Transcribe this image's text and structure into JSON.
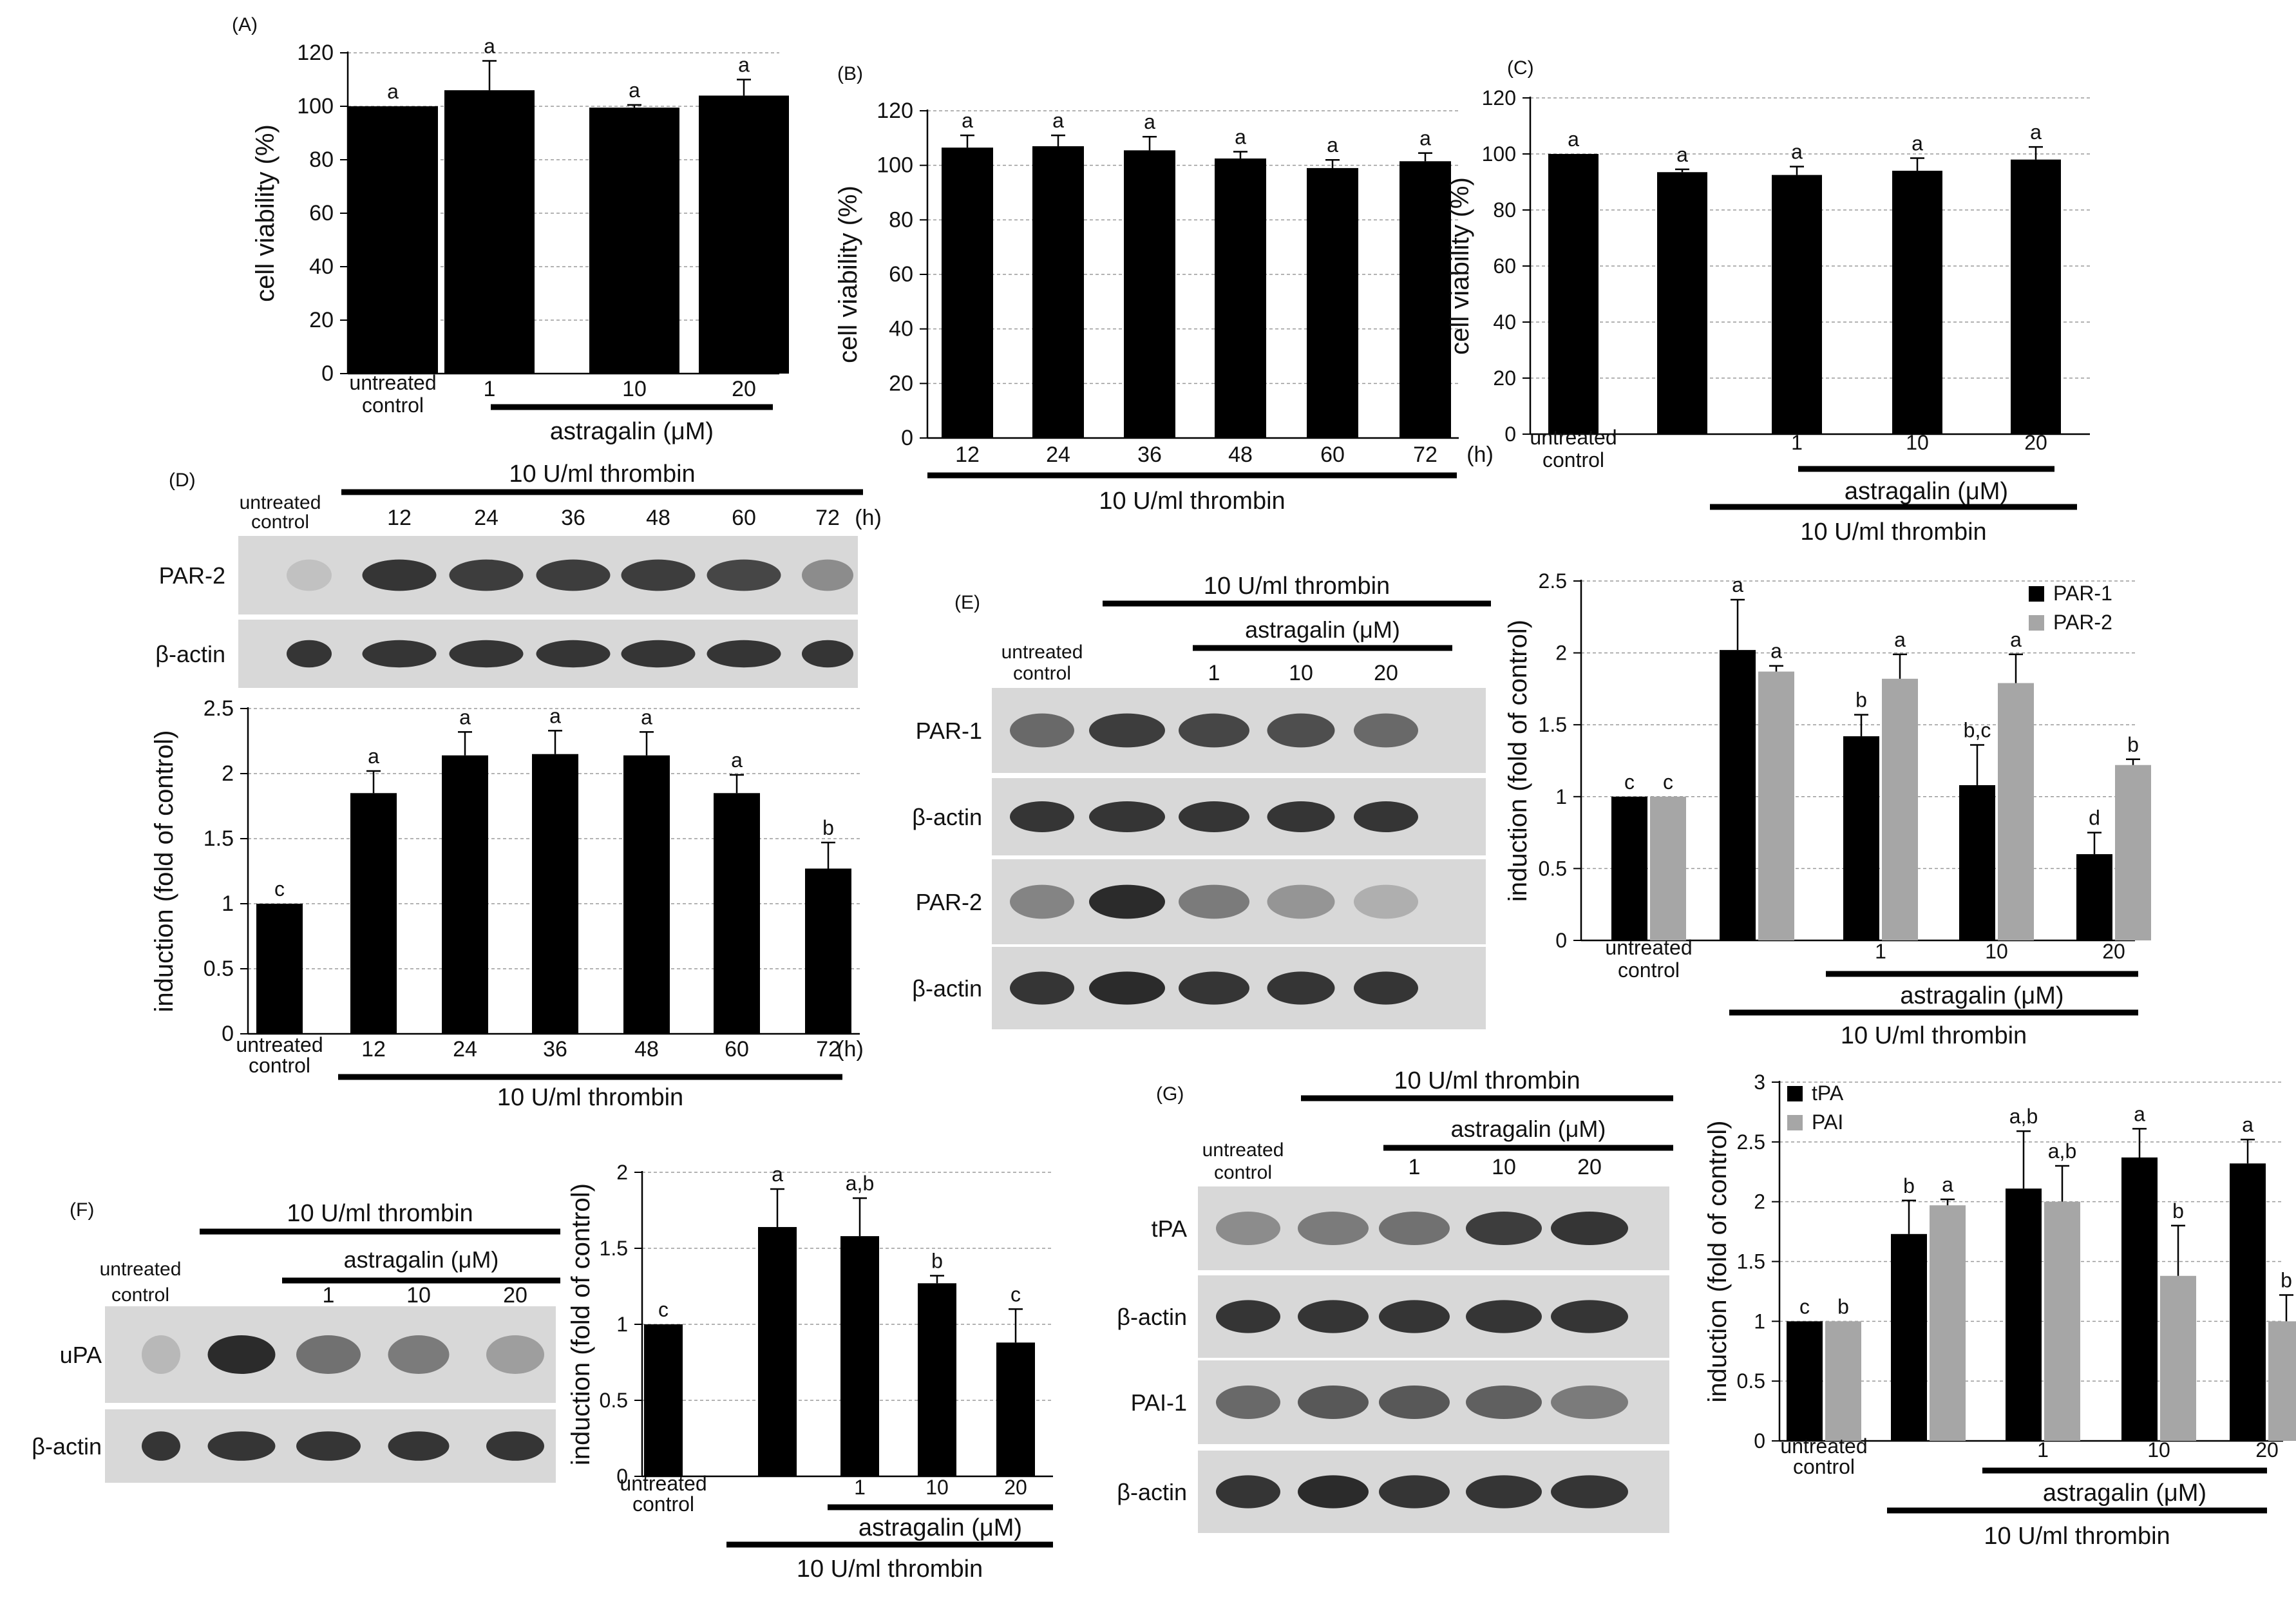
{
  "charts": [
    {
      "id": "A",
      "panel_label": "(A)",
      "type": "bar",
      "ylabel": "cell viability (%)",
      "ylim": [
        0,
        120
      ],
      "yticks": [
        0,
        20,
        40,
        60,
        80,
        100,
        120
      ],
      "ticklabels": [
        "0",
        "20",
        "40",
        "60",
        "80",
        "100",
        "120"
      ],
      "categories": [
        [
          "untreated",
          "control"
        ],
        [
          "1"
        ],
        [
          "10"
        ],
        [
          "20"
        ]
      ],
      "x_unit": "",
      "series": [
        {
          "values": [
            100,
            106,
            99.5,
            104
          ],
          "errors": [
            0,
            11,
            1,
            6
          ],
          "letters": [
            "a",
            "a",
            "a",
            "a"
          ],
          "color": "#000000"
        }
      ],
      "brackets": [
        {
          "label": "astragalin (μM)"
        }
      ]
    },
    {
      "id": "B",
      "panel_label": "(B)",
      "type": "bar",
      "ylabel": "cell viability (%)",
      "ylim": [
        0,
        120
      ],
      "yticks": [
        0,
        20,
        40,
        60,
        80,
        100,
        120
      ],
      "ticklabels": [
        "0",
        "20",
        "40",
        "60",
        "80",
        "100",
        "120"
      ],
      "categories": [
        [
          "12"
        ],
        [
          "24"
        ],
        [
          "36"
        ],
        [
          "48"
        ],
        [
          "60"
        ],
        [
          "72"
        ]
      ],
      "x_unit": "(h)",
      "series": [
        {
          "values": [
            106.5,
            107,
            105.5,
            102.5,
            99,
            101.5
          ],
          "errors": [
            4.5,
            4,
            5,
            2.5,
            3,
            3
          ],
          "letters": [
            "a",
            "a",
            "a",
            "a",
            "a",
            "a"
          ],
          "color": "#000000"
        }
      ],
      "brackets": [
        {
          "label": "10 U/ml thrombin"
        }
      ]
    },
    {
      "id": "C",
      "panel_label": "(C)",
      "type": "bar",
      "ylabel": "cell viability (%)",
      "ylim": [
        0,
        120
      ],
      "yticks": [
        0,
        20,
        40,
        60,
        80,
        100,
        120
      ],
      "ticklabels": [
        "0",
        "20",
        "40",
        "60",
        "80",
        "100",
        "120"
      ],
      "categories": [
        [
          "untreated",
          "control"
        ],
        [
          ""
        ],
        [
          "1"
        ],
        [
          "10"
        ],
        [
          "20"
        ]
      ],
      "x_unit": "",
      "series": [
        {
          "values": [
            100,
            93.5,
            92.5,
            94,
            98
          ],
          "errors": [
            0,
            1,
            3,
            4.5,
            4.5
          ],
          "letters": [
            "a",
            "a",
            "a",
            "a",
            "a"
          ],
          "color": "#000000"
        }
      ],
      "brackets": [
        {
          "label": "astragalin (μM)"
        },
        {
          "label": "10 U/ml thrombin"
        }
      ]
    },
    {
      "id": "D",
      "panel_label": "",
      "type": "bar",
      "ylabel": "induction (fold of control)",
      "ylim": [
        0,
        2.5
      ],
      "yticks": [
        0,
        0.5,
        1,
        1.5,
        2,
        2.5
      ],
      "ticklabels": [
        "0",
        "0.5",
        "1",
        "1.5",
        "2",
        "2.5"
      ],
      "categories": [
        [
          "untreated",
          "control"
        ],
        [
          "12"
        ],
        [
          "24"
        ],
        [
          "36"
        ],
        [
          "48"
        ],
        [
          "60"
        ],
        [
          "72"
        ]
      ],
      "x_unit": "(h)",
      "series": [
        {
          "values": [
            1,
            1.85,
            2.14,
            2.15,
            2.14,
            1.85,
            1.27
          ],
          "errors": [
            0,
            0.17,
            0.18,
            0.18,
            0.18,
            0.14,
            0.2
          ],
          "letters": [
            "c",
            "a",
            "a",
            "a",
            "a",
            "a",
            "b"
          ],
          "color": "#000000"
        }
      ],
      "brackets": [
        {
          "label": "10 U/ml thrombin"
        }
      ]
    },
    {
      "id": "E",
      "panel_label": "",
      "type": "bar",
      "ylabel": "induction (fold of control)",
      "ylim": [
        0,
        2.5
      ],
      "yticks": [
        0,
        0.5,
        1,
        1.5,
        2,
        2.5
      ],
      "ticklabels": [
        "0",
        "0.5",
        "1",
        "1.5",
        "2",
        "2.5"
      ],
      "categories": [
        [
          "untreated",
          "control"
        ],
        [
          ""
        ],
        [
          "1"
        ],
        [
          "10"
        ],
        [
          "20"
        ]
      ],
      "x_unit": "",
      "series": [
        {
          "name": "PAR-1",
          "values": [
            1,
            2.02,
            1.42,
            1.08,
            0.6
          ],
          "errors": [
            0,
            0.35,
            0.15,
            0.28,
            0.15
          ],
          "letters": [
            "c",
            "a",
            "b",
            "b,c",
            "d"
          ],
          "color": "#000000"
        },
        {
          "name": "PAR-2",
          "values": [
            1,
            1.87,
            1.82,
            1.79,
            1.22
          ],
          "errors": [
            0,
            0.04,
            0.17,
            0.2,
            0.04
          ],
          "letters": [
            "c",
            "a",
            "a",
            "a",
            "b"
          ],
          "color": "#a6a6a6"
        }
      ],
      "brackets": [
        {
          "label": "astragalin (μM)"
        },
        {
          "label": "10 U/ml thrombin"
        }
      ]
    },
    {
      "id": "F",
      "panel_label": "",
      "type": "bar",
      "ylabel": "induction (fold of control)",
      "ylim": [
        0,
        2
      ],
      "yticks": [
        0,
        0.5,
        1,
        1.5,
        2
      ],
      "ticklabels": [
        "0",
        "0.5",
        "1",
        "1.5",
        "2"
      ],
      "categories": [
        [
          "untreated",
          "control"
        ],
        [
          ""
        ],
        [
          "1"
        ],
        [
          "10"
        ],
        [
          "20"
        ]
      ],
      "x_unit": "",
      "series": [
        {
          "values": [
            1,
            1.64,
            1.58,
            1.27,
            0.88
          ],
          "errors": [
            0,
            0.25,
            0.25,
            0.05,
            0.22
          ],
          "letters": [
            "c",
            "a",
            "a,b",
            "b",
            "c"
          ],
          "color": "#000000"
        }
      ],
      "brackets": [
        {
          "label": "astragalin (μM)"
        },
        {
          "label": "10 U/ml thrombin"
        }
      ]
    },
    {
      "id": "G",
      "panel_label": "",
      "type": "bar",
      "ylabel": "induction (fold of control)",
      "ylim": [
        0,
        3
      ],
      "yticks": [
        0,
        0.5,
        1,
        1.5,
        2,
        2.5,
        3
      ],
      "ticklabels": [
        "0",
        "0.5",
        "1",
        "1.5",
        "2",
        "2.5",
        "3"
      ],
      "categories": [
        [
          "untreated",
          "control"
        ],
        [
          ""
        ],
        [
          "1"
        ],
        [
          "10"
        ],
        [
          "20"
        ]
      ],
      "x_unit": "",
      "series": [
        {
          "name": "tPA",
          "values": [
            1,
            1.73,
            2.11,
            2.37,
            2.32
          ],
          "errors": [
            0,
            0.28,
            0.48,
            0.24,
            0.2
          ],
          "letters": [
            "c",
            "b",
            "a,b",
            "a",
            "a"
          ],
          "color": "#000000"
        },
        {
          "name": "PAI",
          "values": [
            1,
            1.97,
            2.0,
            1.38,
            1.0
          ],
          "errors": [
            0,
            0.05,
            0.3,
            0.42,
            0.22
          ],
          "letters": [
            "b",
            "a",
            "a,b",
            "b",
            "b"
          ],
          "color": "#a6a6a6"
        }
      ],
      "brackets": [
        {
          "label": "astragalin (μM)"
        },
        {
          "label": "10 U/ml thrombin"
        }
      ]
    }
  ],
  "blots": {
    "D": {
      "panel_label": "(D)",
      "treatment": "10 U/ml thrombin",
      "lane_labels": [
        "untreated control",
        "12",
        "24",
        "36",
        "48",
        "60",
        "72"
      ],
      "unit": "(h)",
      "rows": [
        {
          "label": "PAR-2",
          "intensity": [
            0.1,
            0.9,
            0.85,
            0.85,
            0.85,
            0.8,
            0.4
          ]
        },
        {
          "label": "β-actin",
          "intensity": [
            0.9,
            0.9,
            0.9,
            0.9,
            0.9,
            0.9,
            0.9
          ]
        }
      ]
    },
    "E": {
      "panel_label": "(E)",
      "treatment": "10 U/ml thrombin",
      "sub_treatment": "astragalin (μM)",
      "lane_labels": [
        "untreated control",
        "",
        "1",
        "10",
        "20"
      ],
      "rows": [
        {
          "label": "PAR-1",
          "intensity": [
            0.6,
            0.85,
            0.8,
            0.75,
            0.6
          ]
        },
        {
          "label": "β-actin",
          "intensity": [
            0.9,
            0.9,
            0.9,
            0.9,
            0.9
          ]
        },
        {
          "label": "PAR-2",
          "intensity": [
            0.45,
            0.95,
            0.5,
            0.35,
            0.2
          ]
        },
        {
          "label": "β-actin",
          "intensity": [
            0.9,
            0.95,
            0.9,
            0.9,
            0.9
          ]
        }
      ]
    },
    "F": {
      "panel_label": "(F)",
      "treatment": "10 U/ml thrombin",
      "sub_treatment": "astragalin (μM)",
      "lane_labels": [
        "untreated control",
        "",
        "1",
        "10",
        "20"
      ],
      "rows": [
        {
          "label": "uPA",
          "intensity": [
            0.15,
            0.95,
            0.55,
            0.5,
            0.3
          ]
        },
        {
          "label": "β-actin",
          "intensity": [
            0.9,
            0.9,
            0.9,
            0.9,
            0.9
          ]
        }
      ]
    },
    "G": {
      "panel_label": "(G)",
      "treatment": "10 U/ml thrombin",
      "sub_treatment": "astragalin (μM)",
      "lane_labels": [
        "untreated control",
        "",
        "1",
        "10",
        "20"
      ],
      "rows": [
        {
          "label": "tPA",
          "intensity": [
            0.4,
            0.5,
            0.55,
            0.85,
            0.9
          ]
        },
        {
          "label": "β-actin",
          "intensity": [
            0.9,
            0.9,
            0.9,
            0.9,
            0.9
          ]
        },
        {
          "label": "PAI-1",
          "intensity": [
            0.6,
            0.7,
            0.7,
            0.65,
            0.5
          ]
        },
        {
          "label": "β-actin",
          "intensity": [
            0.9,
            0.95,
            0.9,
            0.9,
            0.9
          ]
        }
      ]
    }
  }
}
